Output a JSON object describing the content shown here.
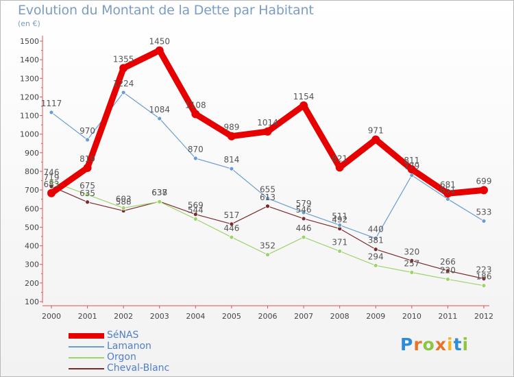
{
  "header": {
    "title": "Evolution du Montant de la Dette par Habitant",
    "subtitle": "(en €)"
  },
  "logo": {
    "text": "Proxiti"
  },
  "chart_data": {
    "type": "line",
    "categories": [
      "2000",
      "2001",
      "2002",
      "2003",
      "2004",
      "2005",
      "2006",
      "2007",
      "2008",
      "2009",
      "2010",
      "2011",
      "2012"
    ],
    "ylim": [
      100,
      1500
    ],
    "yticks": [
      100,
      200,
      300,
      400,
      500,
      600,
      700,
      800,
      900,
      1000,
      1100,
      1200,
      1300,
      1400,
      1500
    ],
    "grid": false,
    "legend_position": "bottom-left",
    "series": [
      {
        "name": "SéNAS",
        "color": "#e60000",
        "values": [
          683,
          819,
          1355,
          1450,
          1108,
          989,
          1014,
          1154,
          821,
          971,
          811,
          681,
          699
        ]
      },
      {
        "name": "Lamanon",
        "color": "#6a9dcf",
        "values": [
          1117,
          970,
          1224,
          1084,
          870,
          814,
          655,
          579,
          511,
          440,
          779,
          651,
          533
        ]
      },
      {
        "name": "Orgon",
        "color": "#9ed36b",
        "values": [
          746,
          675,
          603,
          637,
          544,
          446,
          352,
          446,
          371,
          294,
          257,
          220,
          186
        ]
      },
      {
        "name": "Cheval-Blanc",
        "color": "#7a2a2a",
        "values": [
          719,
          635,
          588,
          638,
          569,
          517,
          613,
          546,
          492,
          381,
          320,
          266,
          223
        ]
      }
    ]
  }
}
